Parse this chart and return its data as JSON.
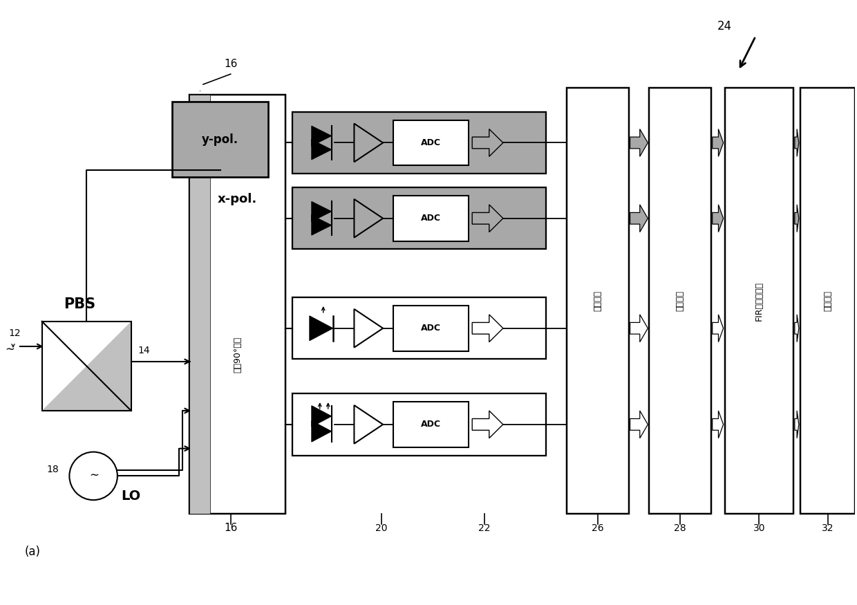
{
  "background_color": "#ffffff",
  "fig_width": 12.4,
  "fig_height": 8.75,
  "label_16_top": "16",
  "label_16_bot": "16",
  "label_12": "12",
  "label_14": "14",
  "label_18": "18",
  "label_20": "20",
  "label_22": "22",
  "label_24": "24",
  "label_26": "26",
  "label_28": "28",
  "label_30": "30",
  "label_32": "32",
  "label_PBS": "PBS",
  "label_LO": "LO",
  "label_ypol": "y-pol.",
  "label_xpol": "x-pol.",
  "label_90": "光学90°混合",
  "label_ADC": "ADC",
  "label_disp": "色散补偿",
  "label_timing": "时序恢复",
  "label_fir": "FIR蝠调均衡器",
  "label_carrier": "载波恢复",
  "label_a": "(a)"
}
